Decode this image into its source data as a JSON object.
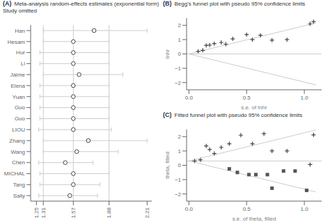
{
  "chart_data": [
    {
      "type": "forest",
      "annotations": [
        "(A)"
      ],
      "title": "Meta-analysis random-effects estimates (exponential form)\nStudy omitted",
      "categories": [
        "Han",
        "Hesam",
        "Hur",
        "Li",
        "Jaime",
        "Elena",
        "Yuan",
        "Guo",
        "Guo",
        "LIOU",
        "Zhang",
        "Wang",
        "Chen",
        "MICHAL",
        "Tang",
        "Sally"
      ],
      "values": [
        1.75,
        1.57,
        1.57,
        1.57,
        1.62,
        1.57,
        1.57,
        1.57,
        1.57,
        1.57,
        1.7,
        1.6,
        1.5,
        1.57,
        1.57,
        1.54
      ],
      "lower": [
        1.31,
        1.31,
        1.28,
        1.28,
        1.31,
        1.28,
        1.28,
        1.28,
        1.28,
        1.27,
        1.31,
        1.31,
        1.27,
        1.28,
        1.28,
        1.27
      ],
      "upper": [
        2.21,
        1.88,
        1.88,
        1.88,
        2.0,
        1.88,
        1.88,
        1.88,
        1.88,
        1.9,
        2.21,
        1.96,
        1.74,
        1.88,
        1.8,
        1.78
      ],
      "vlines": [
        1.31,
        1.57,
        1.88
      ],
      "xlim": [
        1.2,
        2.25
      ],
      "xticks": [
        1.25,
        1.31,
        1.57,
        1.88,
        2.21
      ],
      "color": "#444444",
      "marker": "circle"
    },
    {
      "type": "scatter",
      "annotations": [
        "(B)"
      ],
      "title": "Begg's funnel plot with pseudo 95% confidence limits",
      "xlabel": "s.e. of lnhr",
      "ylabel": "lnhr",
      "x": [
        0.08,
        0.12,
        0.15,
        0.18,
        0.22,
        0.28,
        0.32,
        0.38,
        0.5,
        0.55,
        0.62,
        0.72,
        0.85,
        1.05,
        1.08
      ],
      "values": [
        0.18,
        0.25,
        0.6,
        0.62,
        0.72,
        0.8,
        0.68,
        1.05,
        1.35,
        1.0,
        1.3,
        0.96,
        1.0,
        2.1,
        2.25
      ],
      "color": "#444444",
      "marker": "plus",
      "hline": 0.0,
      "funnel_x": [
        0.0,
        1.1
      ],
      "funnel_upper": [
        0.0,
        2.16
      ],
      "funnel_lower": [
        0.0,
        -2.16
      ],
      "xlim": [
        -0.02,
        1.15
      ],
      "ylim": [
        -2.5,
        2.5
      ],
      "yticks": [
        {
          "value": -2,
          "label": "−2"
        },
        {
          "value": -1,
          "label": "−1"
        },
        0,
        1,
        2
      ],
      "xticks": [
        {
          "value": 0,
          "label": "0.0"
        },
        0.5,
        {
          "value": 1,
          "label": "1.0"
        }
      ]
    },
    {
      "type": "scatter",
      "annotations": [
        "(C)"
      ],
      "title": "Fitted funnel plot with pseudo 95% confidence limits",
      "xlabel": "s.e. of theta, filled",
      "ylabel": "theta, filled",
      "series": [
        {
          "color": "#444444",
          "marker": "plus",
          "x": [
            0.05,
            0.1,
            0.15,
            0.18,
            0.22,
            0.28,
            0.35,
            0.45,
            0.55,
            0.65,
            0.72,
            0.85,
            1.05,
            1.08
          ],
          "values": [
            0.3,
            0.38,
            1.35,
            1.1,
            0.82,
            1.25,
            1.5,
            2.1,
            1.5,
            2.2,
            1.0,
            1.0,
            0.05,
            2.12
          ]
        },
        {
          "color": "#555555",
          "marker": "square",
          "x": [
            0.35,
            0.42,
            0.52,
            0.58,
            0.68,
            0.72,
            0.82,
            0.92,
            1.02
          ],
          "values": [
            -0.25,
            -0.5,
            -0.65,
            -0.65,
            -0.65,
            -1.6,
            -0.4,
            -0.4,
            -1.75
          ]
        }
      ],
      "hline": 0.3,
      "funnel_x": [
        0.0,
        1.1
      ],
      "funnel_upper": [
        0.3,
        2.46
      ],
      "funnel_lower": [
        0.3,
        -1.86
      ],
      "xlim": [
        -0.02,
        1.15
      ],
      "ylim": [
        -2.5,
        2.5
      ],
      "yticks": [
        {
          "value": -2,
          "label": "−2"
        },
        {
          "value": -1,
          "label": "−1"
        },
        0,
        1,
        2
      ],
      "xticks": [
        {
          "value": 0,
          "label": "0.0"
        },
        0.5,
        {
          "value": 1,
          "label": "1.0"
        }
      ]
    }
  ]
}
